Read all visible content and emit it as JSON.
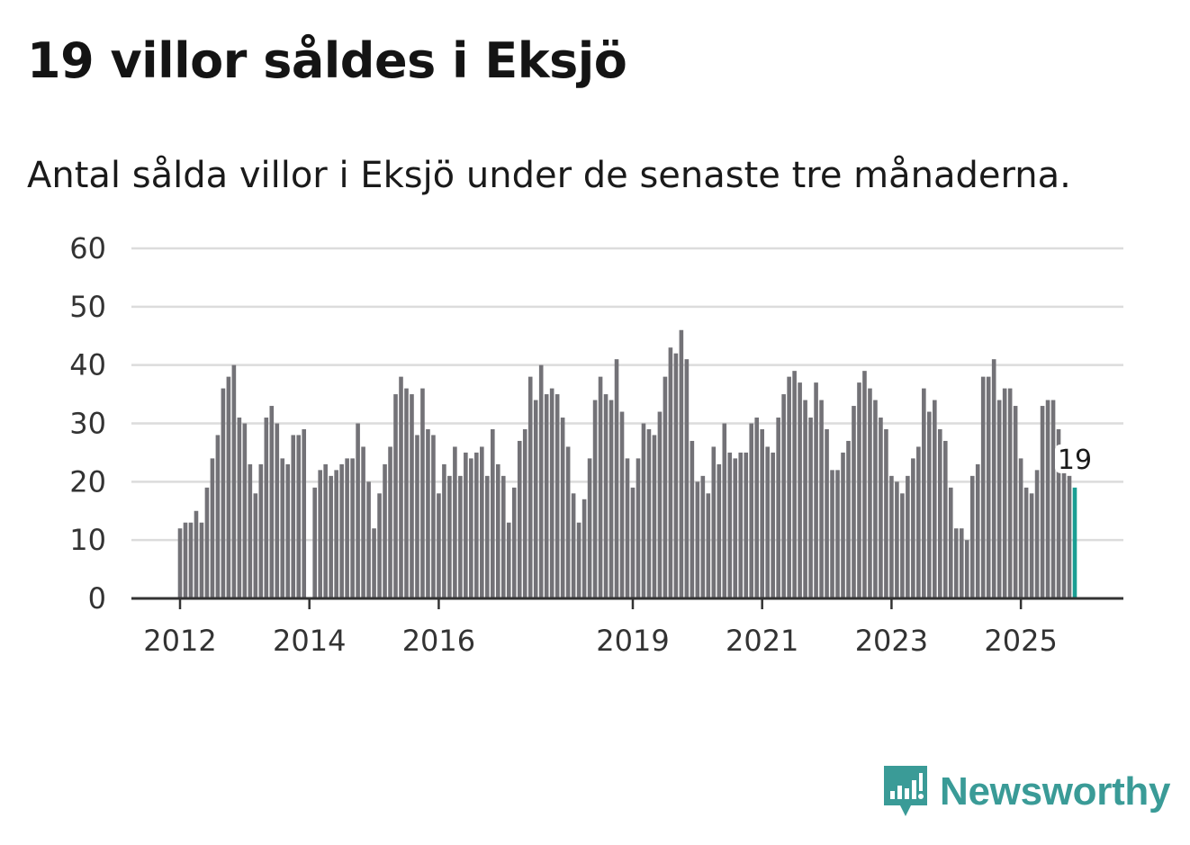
{
  "header": {
    "title": "19 villor såldes i Eksjö",
    "subtitle": "Antal sålda villor i Eksjö under de senaste tre månaderna."
  },
  "brand": {
    "name": "Newsworthy"
  },
  "colors": {
    "bar": "#737277",
    "highlight": "#1a9e93",
    "grid": "#dcdcdc",
    "axis": "#333333",
    "brand": "#3a9b97"
  },
  "chart_data": {
    "type": "bar",
    "title": "19 villor såldes i Eksjö",
    "subtitle": "Antal sålda villor i Eksjö under de senaste tre månaderna.",
    "xlabel": "",
    "ylabel": "",
    "ylim": [
      0,
      60
    ],
    "yticks": [
      0,
      10,
      20,
      30,
      40,
      50,
      60
    ],
    "xtick_labels": [
      "2012",
      "2014",
      "2016",
      "2019",
      "2021",
      "2023",
      "2025"
    ],
    "xtick_index": [
      0,
      24,
      48,
      84,
      108,
      132,
      156
    ],
    "last_value_label": "19",
    "grid": true,
    "series": [
      {
        "name": "Antal sålda villor",
        "values": [
          12,
          13,
          13,
          15,
          13,
          19,
          24,
          28,
          36,
          38,
          40,
          31,
          30,
          23,
          18,
          23,
          31,
          33,
          30,
          24,
          23,
          28,
          28,
          29,
          null,
          19,
          22,
          23,
          21,
          22,
          23,
          24,
          24,
          30,
          26,
          20,
          12,
          18,
          23,
          26,
          35,
          38,
          36,
          35,
          28,
          36,
          29,
          28,
          18,
          23,
          21,
          26,
          21,
          25,
          24,
          25,
          26,
          21,
          29,
          23,
          21,
          13,
          19,
          27,
          29,
          38,
          34,
          40,
          35,
          36,
          35,
          31,
          26,
          18,
          13,
          17,
          24,
          34,
          38,
          35,
          34,
          41,
          32,
          24,
          19,
          24,
          30,
          29,
          28,
          32,
          38,
          43,
          42,
          46,
          41,
          27,
          20,
          21,
          18,
          26,
          23,
          30,
          25,
          24,
          25,
          25,
          30,
          31,
          29,
          26,
          25,
          31,
          35,
          38,
          39,
          37,
          34,
          31,
          37,
          34,
          29,
          22,
          22,
          25,
          27,
          33,
          37,
          39,
          36,
          34,
          31,
          29,
          21,
          20,
          18,
          21,
          24,
          26,
          36,
          32,
          34,
          29,
          27,
          19,
          12,
          12,
          10,
          21,
          23,
          38,
          38,
          41,
          34,
          36,
          36,
          33,
          24,
          19,
          18,
          22,
          33,
          34,
          34,
          29,
          22,
          21,
          19
        ]
      }
    ]
  }
}
